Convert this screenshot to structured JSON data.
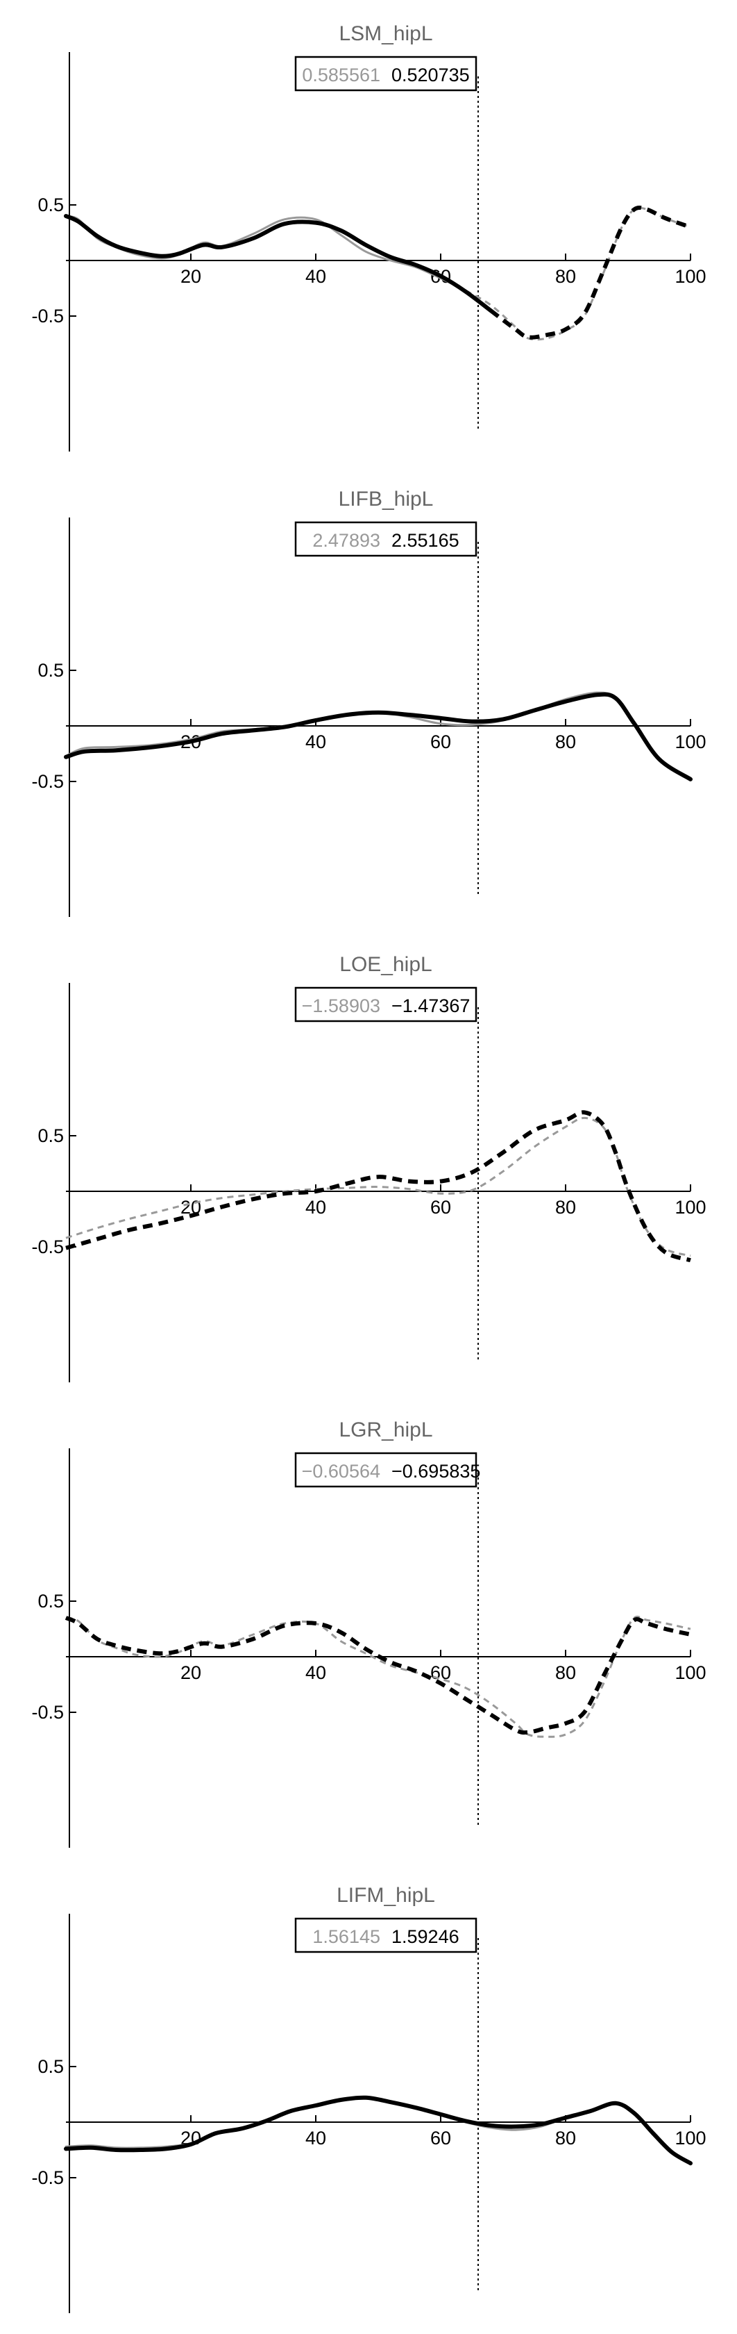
{
  "figure": {
    "background": "#ffffff",
    "vline_x": 66,
    "colors": {
      "reference": "#999999",
      "main": "#000000",
      "title": "#666666"
    }
  },
  "chart_data": [
    {
      "type": "line",
      "title": "LSM_hipL",
      "box_values": [
        "0.585561",
        "0.520735"
      ],
      "xlim": [
        0,
        100
      ],
      "ylim": [
        -0.85,
        0.85
      ],
      "xticks": [
        "20",
        "40",
        "60",
        "80",
        "100"
      ],
      "yticks": [
        "0.5",
        "-0.5"
      ],
      "x": [
        0,
        2,
        5,
        8,
        11,
        15,
        18,
        22,
        25,
        30,
        35,
        40,
        44,
        48,
        52,
        56,
        60,
        64,
        68,
        72,
        74,
        77,
        80,
        83,
        86,
        89,
        91,
        93,
        96,
        100
      ],
      "series": [
        {
          "values": [
            0.4,
            0.37,
            0.2,
            0.12,
            0.06,
            0.02,
            0.05,
            0.16,
            0.13,
            0.24,
            0.37,
            0.37,
            0.23,
            0.08,
            0.0,
            -0.06,
            -0.16,
            -0.27,
            -0.4,
            -0.6,
            -0.7,
            -0.7,
            -0.63,
            -0.5,
            -0.12,
            0.3,
            0.46,
            0.46,
            0.38,
            0.3
          ],
          "color": "#999999",
          "width": 3,
          "solid_until": 66
        },
        {
          "values": [
            0.4,
            0.35,
            0.22,
            0.13,
            0.08,
            0.04,
            0.06,
            0.14,
            0.12,
            0.2,
            0.33,
            0.34,
            0.27,
            0.14,
            0.03,
            -0.04,
            -0.14,
            -0.28,
            -0.45,
            -0.62,
            -0.69,
            -0.67,
            -0.62,
            -0.48,
            -0.1,
            0.3,
            0.46,
            0.46,
            0.38,
            0.3
          ],
          "color": "#000000",
          "width": 6,
          "solid_until": 68
        }
      ]
    },
    {
      "type": "line",
      "title": "LIFB_hipL",
      "box_values": [
        "2.47893",
        "2.55165"
      ],
      "xlim": [
        0,
        100
      ],
      "ylim": [
        -0.85,
        0.85
      ],
      "xticks": [
        "20",
        "40",
        "60",
        "80",
        "100"
      ],
      "yticks": [
        "0.5",
        "-0.5"
      ],
      "x": [
        0,
        3,
        8,
        14,
        20,
        25,
        30,
        35,
        40,
        45,
        50,
        55,
        60,
        65,
        70,
        75,
        80,
        85,
        88,
        91,
        95,
        100
      ],
      "series": [
        {
          "values": [
            -0.27,
            -0.2,
            -0.19,
            -0.17,
            -0.12,
            -0.05,
            -0.03,
            0.0,
            0.05,
            0.1,
            0.12,
            0.08,
            0.02,
            0.01,
            0.05,
            0.14,
            0.24,
            0.3,
            0.25,
            0.02,
            -0.3,
            -0.48
          ],
          "color": "#999999",
          "width": 3,
          "solid_until": 100
        },
        {
          "values": [
            -0.28,
            -0.23,
            -0.22,
            -0.19,
            -0.14,
            -0.07,
            -0.04,
            -0.01,
            0.05,
            0.1,
            0.12,
            0.1,
            0.07,
            0.04,
            0.06,
            0.14,
            0.22,
            0.28,
            0.25,
            0.02,
            -0.3,
            -0.48
          ],
          "color": "#000000",
          "width": 6,
          "solid_until": 100
        }
      ]
    },
    {
      "type": "line",
      "title": "LOE_hipL",
      "box_values": [
        "−1.58903",
        "−1.47367"
      ],
      "xlim": [
        0,
        100
      ],
      "ylim": [
        -0.85,
        0.85
      ],
      "xticks": [
        "20",
        "40",
        "60",
        "80",
        "100"
      ],
      "yticks": [
        "0.5",
        "-0.5"
      ],
      "x": [
        0,
        5,
        10,
        15,
        20,
        25,
        30,
        35,
        40,
        45,
        50,
        55,
        60,
        65,
        70,
        75,
        80,
        83,
        86,
        88,
        90,
        93,
        96,
        100
      ],
      "series": [
        {
          "values": [
            -0.42,
            -0.33,
            -0.25,
            -0.18,
            -0.11,
            -0.06,
            -0.03,
            0.0,
            0.02,
            0.03,
            0.04,
            0.02,
            -0.02,
            0.01,
            0.18,
            0.4,
            0.58,
            0.66,
            0.58,
            0.35,
            0.0,
            -0.35,
            -0.52,
            -0.58
          ],
          "color": "#999999",
          "width": 3,
          "solid_until": 0
        },
        {
          "values": [
            -0.51,
            -0.43,
            -0.35,
            -0.29,
            -0.22,
            -0.14,
            -0.07,
            -0.02,
            0.0,
            0.07,
            0.13,
            0.09,
            0.09,
            0.17,
            0.35,
            0.55,
            0.64,
            0.71,
            0.6,
            0.35,
            0.02,
            -0.35,
            -0.55,
            -0.62
          ],
          "color": "#000000",
          "width": 6,
          "solid_until": 0
        }
      ]
    },
    {
      "type": "line",
      "title": "LGR_hipL",
      "box_values": [
        "−0.60564",
        "−0.695835"
      ],
      "xlim": [
        0,
        100
      ],
      "ylim": [
        -0.85,
        0.85
      ],
      "xticks": [
        "20",
        "40",
        "60",
        "80",
        "100"
      ],
      "yticks": [
        "0.5",
        "-0.5"
      ],
      "x": [
        0,
        2,
        5,
        8,
        11,
        15,
        18,
        22,
        25,
        30,
        35,
        40,
        44,
        48,
        52,
        56,
        60,
        64,
        68,
        72,
        74,
        77,
        80,
        83,
        86,
        89,
        91,
        93,
        96,
        100
      ],
      "series": [
        {
          "values": [
            0.35,
            0.32,
            0.15,
            0.08,
            0.02,
            0.0,
            0.04,
            0.14,
            0.1,
            0.2,
            0.3,
            0.3,
            0.14,
            0.03,
            -0.08,
            -0.14,
            -0.2,
            -0.28,
            -0.42,
            -0.6,
            -0.7,
            -0.72,
            -0.7,
            -0.58,
            -0.25,
            0.15,
            0.35,
            0.33,
            0.3,
            0.25
          ],
          "color": "#999999",
          "width": 3,
          "solid_until": 0
        },
        {
          "values": [
            0.35,
            0.3,
            0.16,
            0.1,
            0.06,
            0.03,
            0.05,
            0.12,
            0.09,
            0.16,
            0.28,
            0.3,
            0.22,
            0.07,
            -0.05,
            -0.13,
            -0.24,
            -0.38,
            -0.52,
            -0.66,
            -0.68,
            -0.64,
            -0.6,
            -0.5,
            -0.18,
            0.15,
            0.33,
            0.3,
            0.25,
            0.2
          ],
          "color": "#000000",
          "width": 6,
          "solid_until": 0
        }
      ]
    },
    {
      "type": "line",
      "title": "LIFM_hipL",
      "box_values": [
        "1.56145",
        "1.59246"
      ],
      "xlim": [
        0,
        100
      ],
      "ylim": [
        -0.85,
        0.85
      ],
      "xticks": [
        "20",
        "40",
        "60",
        "80",
        "100"
      ],
      "yticks": [
        "0.5",
        "-0.5"
      ],
      "x": [
        0,
        4,
        8,
        12,
        16,
        20,
        24,
        28,
        32,
        36,
        40,
        44,
        48,
        52,
        56,
        60,
        64,
        68,
        72,
        76,
        80,
        84,
        88,
        91,
        94,
        97,
        100
      ],
      "series": [
        {
          "values": [
            -0.22,
            -0.21,
            -0.23,
            -0.23,
            -0.22,
            -0.19,
            -0.1,
            -0.06,
            0.01,
            0.1,
            0.15,
            0.2,
            0.22,
            0.18,
            0.13,
            0.07,
            0.0,
            -0.05,
            -0.07,
            -0.04,
            0.04,
            0.1,
            0.17,
            0.08,
            -0.1,
            -0.27,
            -0.37
          ],
          "color": "#999999",
          "width": 3,
          "solid_until": 100
        },
        {
          "values": [
            -0.24,
            -0.23,
            -0.25,
            -0.25,
            -0.24,
            -0.2,
            -0.1,
            -0.06,
            0.01,
            0.1,
            0.15,
            0.2,
            0.22,
            0.18,
            0.13,
            0.07,
            0.01,
            -0.03,
            -0.04,
            -0.02,
            0.04,
            0.1,
            0.17,
            0.08,
            -0.1,
            -0.27,
            -0.37
          ],
          "color": "#000000",
          "width": 6,
          "solid_until": 100
        }
      ]
    }
  ]
}
